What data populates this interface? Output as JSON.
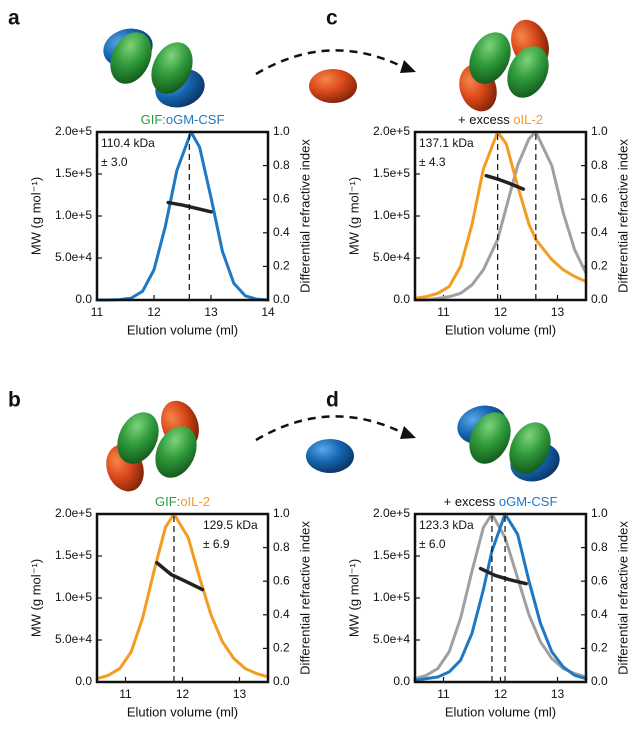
{
  "chart_data": [
    {
      "type": "line",
      "panel": "a",
      "title": [
        {
          "text": "GIF:",
          "color": "#2e9a3e"
        },
        {
          "text": "oGM-CSF",
          "color": "#1f78c1"
        }
      ],
      "annotation": [
        "110.4 kDa",
        "± 3.0"
      ],
      "annotation_corner": "left",
      "xlabel": "Elution volume (ml)",
      "ylabel": "MW (g mol⁻¹)",
      "y2label": "Differential refractive index",
      "xlim": [
        11,
        14
      ],
      "xticks": [
        11,
        12,
        13,
        14
      ],
      "ylim": [
        0,
        200000
      ],
      "yticks": [
        {
          "value": 0,
          "label": "0.0"
        },
        {
          "value": 50000,
          "label": "5.0e+4"
        },
        {
          "value": 100000,
          "label": "1.0e+5"
        },
        {
          "value": 150000,
          "label": "1.5e+5"
        },
        {
          "value": 200000,
          "label": "2.0e+5"
        }
      ],
      "y2lim": [
        0,
        1
      ],
      "y2ticks": [
        {
          "value": 0,
          "label": "0.0"
        },
        0.2,
        0.4,
        0.6,
        0.8,
        {
          "value": 1,
          "label": "1.0"
        }
      ],
      "x": [
        11.0,
        11.2,
        11.4,
        11.6,
        11.8,
        12.0,
        12.2,
        12.4,
        12.65,
        12.8,
        13.0,
        13.2,
        13.4,
        13.6,
        13.8,
        14.0
      ],
      "series": [
        {
          "color": "#1f78c1",
          "axis": "y2",
          "values": [
            0.0,
            0.0,
            0.002,
            0.011,
            0.052,
            0.18,
            0.44,
            0.77,
            1.0,
            0.91,
            0.61,
            0.29,
            0.1,
            0.025,
            0.005,
            0.0
          ]
        },
        {
          "color": "#222222",
          "x": [
            12.25,
            12.5,
            12.75,
            13.0
          ],
          "values": [
            116000,
            113000,
            109000,
            105000
          ]
        }
      ],
      "peak_x": [
        12.62
      ]
    },
    {
      "type": "line",
      "panel": "b",
      "title": [
        {
          "text": "GIF:",
          "color": "#2e9a3e"
        },
        {
          "text": "oIL-2",
          "color": "#f39c1f"
        }
      ],
      "annotation": [
        "129.5 kDa",
        "± 6.9"
      ],
      "annotation_corner": "right",
      "xlabel": "Elution volume (ml)",
      "ylabel": "MW (g mol⁻¹)",
      "y2label": "Differential refractive index",
      "xlim": [
        10.5,
        13.5
      ],
      "xticks": [
        11,
        12,
        13
      ],
      "ylim": [
        0,
        200000
      ],
      "yticks": [
        {
          "value": 0,
          "label": "0.0"
        },
        {
          "value": 50000,
          "label": "5.0e+4"
        },
        {
          "value": 100000,
          "label": "1.0e+5"
        },
        {
          "value": 150000,
          "label": "1.5e+5"
        },
        {
          "value": 200000,
          "label": "2.0e+5"
        }
      ],
      "y2lim": [
        0,
        1
      ],
      "y2ticks": [
        {
          "value": 0,
          "label": "0.0"
        },
        0.2,
        0.4,
        0.6,
        0.8,
        {
          "value": 1,
          "label": "1.0"
        }
      ],
      "x": [
        10.5,
        10.7,
        10.9,
        11.1,
        11.3,
        11.5,
        11.7,
        11.85,
        12.1,
        12.3,
        12.5,
        12.7,
        12.9,
        13.1,
        13.3,
        13.5
      ],
      "series": [
        {
          "color": "#f39c1f",
          "axis": "y2",
          "values": [
            0.02,
            0.04,
            0.08,
            0.18,
            0.38,
            0.66,
            0.92,
            1.0,
            0.86,
            0.62,
            0.4,
            0.24,
            0.14,
            0.08,
            0.05,
            0.03
          ]
        },
        {
          "color": "#222222",
          "x": [
            11.55,
            11.8,
            12.05,
            12.35
          ],
          "values": [
            142000,
            128000,
            120000,
            110000
          ]
        }
      ],
      "peak_x": [
        11.85
      ]
    },
    {
      "type": "line",
      "panel": "c",
      "title": [
        {
          "text": "+ excess ",
          "color": "#111111"
        },
        {
          "text": "oIL-2",
          "color": "#f39c1f"
        }
      ],
      "annotation": [
        "137.1 kDa",
        "± 4.3"
      ],
      "annotation_corner": "left",
      "xlabel": "Elution volume (ml)",
      "ylabel": "MW (g mol⁻¹)",
      "y2label": "Differential refractive index",
      "xlim": [
        10.5,
        13.5
      ],
      "xticks": [
        11,
        12,
        13
      ],
      "ylim": [
        0,
        200000
      ],
      "yticks": [
        {
          "value": 0,
          "label": "0.0"
        },
        {
          "value": 50000,
          "label": "5.0e+4"
        },
        {
          "value": 100000,
          "label": "1.0e+5"
        },
        {
          "value": 150000,
          "label": "1.5e+5"
        },
        {
          "value": 200000,
          "label": "2.0e+5"
        }
      ],
      "y2lim": [
        0,
        1
      ],
      "y2ticks": [
        {
          "value": 0,
          "label": "0.0"
        },
        0.2,
        0.4,
        0.6,
        0.8,
        {
          "value": 1,
          "label": "1.0"
        }
      ],
      "x": [
        10.5,
        10.7,
        10.9,
        11.1,
        11.3,
        11.5,
        11.7,
        11.95,
        12.1,
        12.3,
        12.5,
        12.62,
        12.9,
        13.1,
        13.3,
        13.5
      ],
      "series": [
        {
          "color": "#a0a0a0",
          "axis": "y2",
          "values": [
            0.0,
            0.0,
            0.01,
            0.02,
            0.04,
            0.09,
            0.18,
            0.36,
            0.55,
            0.8,
            0.96,
            1.0,
            0.8,
            0.52,
            0.3,
            0.16
          ]
        },
        {
          "color": "#f39c1f",
          "axis": "y2",
          "values": [
            0.01,
            0.02,
            0.04,
            0.08,
            0.2,
            0.45,
            0.78,
            1.0,
            0.93,
            0.68,
            0.45,
            0.36,
            0.24,
            0.18,
            0.14,
            0.11
          ]
        },
        {
          "color": "#222222",
          "x": [
            11.75,
            11.95,
            12.15,
            12.4
          ],
          "values": [
            148000,
            144000,
            139000,
            132000
          ]
        }
      ],
      "peak_x": [
        11.95,
        12.62
      ]
    },
    {
      "type": "line",
      "panel": "d",
      "title": [
        {
          "text": "+ excess ",
          "color": "#111111"
        },
        {
          "text": "oGM-CSF",
          "color": "#1f78c1"
        }
      ],
      "annotation": [
        "123.3 kDa",
        "± 6.0"
      ],
      "annotation_corner": "left",
      "xlabel": "Elution volume (ml)",
      "ylabel": "MW (g mol⁻¹)",
      "y2label": "Differential refractive index",
      "xlim": [
        10.5,
        13.5
      ],
      "xticks": [
        11,
        12,
        13
      ],
      "ylim": [
        0,
        200000
      ],
      "yticks": [
        {
          "value": 0,
          "label": "0.0"
        },
        {
          "value": 50000,
          "label": "5.0e+4"
        },
        {
          "value": 100000,
          "label": "1.0e+5"
        },
        {
          "value": 150000,
          "label": "1.5e+5"
        },
        {
          "value": 200000,
          "label": "2.0e+5"
        }
      ],
      "y2lim": [
        0,
        1
      ],
      "y2ticks": [
        {
          "value": 0,
          "label": "0.0"
        },
        0.2,
        0.4,
        0.6,
        0.8,
        {
          "value": 1,
          "label": "1.0"
        }
      ],
      "x": [
        10.5,
        10.7,
        10.9,
        11.1,
        11.3,
        11.5,
        11.7,
        11.85,
        12.08,
        12.3,
        12.5,
        12.7,
        12.9,
        13.1,
        13.3,
        13.5
      ],
      "series": [
        {
          "color": "#a0a0a0",
          "axis": "y2",
          "values": [
            0.02,
            0.04,
            0.08,
            0.18,
            0.38,
            0.66,
            0.92,
            1.0,
            0.86,
            0.62,
            0.4,
            0.24,
            0.14,
            0.08,
            0.05,
            0.03
          ]
        },
        {
          "color": "#1f78c1",
          "axis": "y2",
          "values": [
            0.01,
            0.02,
            0.03,
            0.06,
            0.13,
            0.29,
            0.55,
            0.78,
            1.0,
            0.88,
            0.6,
            0.35,
            0.18,
            0.09,
            0.04,
            0.02
          ]
        },
        {
          "color": "#222222",
          "x": [
            11.65,
            11.9,
            12.15,
            12.45
          ],
          "values": [
            135000,
            127000,
            122000,
            117000
          ]
        }
      ],
      "peak_x": [
        11.85,
        12.08
      ]
    }
  ]
}
